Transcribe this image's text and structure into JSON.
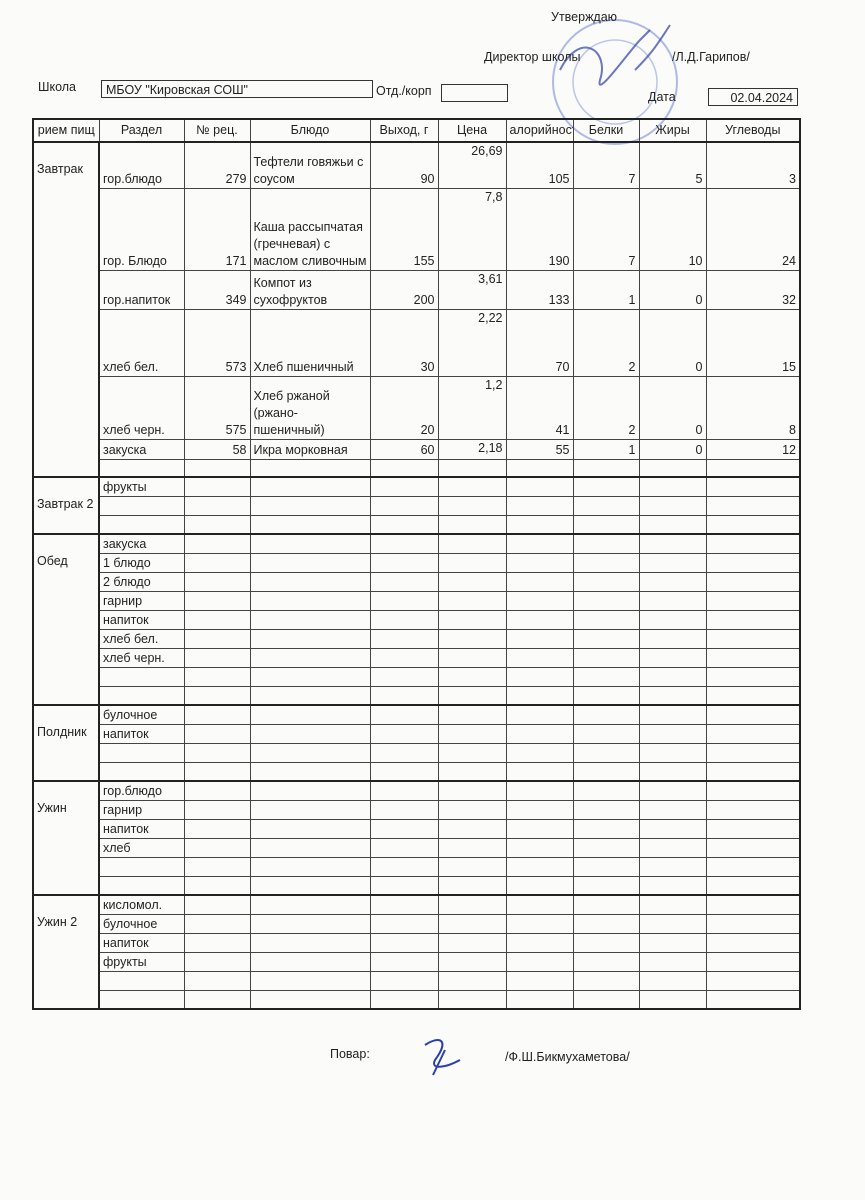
{
  "header": {
    "approve": "Утверждаю",
    "director_label": "Директор школы",
    "director_name": "/Л.Д.Гарипов/",
    "school_label": "Школа",
    "school": "МБОУ \"Кировская СОШ\"",
    "dept_label": "Отд./корп",
    "date_label": "Дата",
    "date": "02.04.2024"
  },
  "table": {
    "columns": [
      "рием пищ",
      "Раздел",
      "№ рец.",
      "Блюдо",
      "Выход, г",
      "Цена",
      "алорийност",
      "Белки",
      "Жиры",
      "Углеводы"
    ],
    "meals": [
      {
        "name": "Завтрак",
        "rows": [
          {
            "section": "гор.блюдо",
            "recipe": 279,
            "dish": "Тефтели говяжьи с соусом",
            "yield": 90,
            "price": "26,69",
            "kcal": 105,
            "protein": 7,
            "fat": 5,
            "carbs": 3
          },
          {
            "section": "гор. Блюдо",
            "recipe": 171,
            "dish": "Каша рассыпчатая (гречневая) с маслом сливочным",
            "yield": 155,
            "price": "7,8",
            "kcal": 190,
            "protein": 7,
            "fat": 10,
            "carbs": 24
          },
          {
            "section": "гор.напиток",
            "recipe": 349,
            "dish": "Компот из сухофруктов",
            "yield": 200,
            "price": "3,61",
            "kcal": 133,
            "protein": 1,
            "fat": 0,
            "carbs": 32
          },
          {
            "section": "хлеб бел.",
            "recipe": 573,
            "dish": "Хлеб пшеничный",
            "yield": 30,
            "price": "2,22",
            "kcal": 70,
            "protein": 2,
            "fat": 0,
            "carbs": 15
          },
          {
            "section": "хлеб черн.",
            "recipe": 575,
            "dish": "Хлеб ржаной (ржано-пшеничный)",
            "yield": 20,
            "price": "1,2",
            "kcal": 41,
            "protein": 2,
            "fat": 0,
            "carbs": 8
          },
          {
            "section": "закуска",
            "recipe": 58,
            "dish": "Икра морковная",
            "yield": 60,
            "price": "2,18",
            "kcal": 55,
            "protein": 1,
            "fat": 0,
            "carbs": 12
          },
          {}
        ]
      },
      {
        "name": "Завтрак 2",
        "rows": [
          {
            "section": "фрукты"
          },
          {},
          {}
        ]
      },
      {
        "name": "Обед",
        "rows": [
          {
            "section": "закуска"
          },
          {
            "section": "1 блюдо"
          },
          {
            "section": "2 блюдо"
          },
          {
            "section": "гарнир"
          },
          {
            "section": "напиток"
          },
          {
            "section": "хлеб бел."
          },
          {
            "section": "хлеб черн."
          },
          {},
          {}
        ]
      },
      {
        "name": "Полдник",
        "rows": [
          {
            "section": "булочное"
          },
          {
            "section": "напиток"
          },
          {},
          {}
        ]
      },
      {
        "name": "Ужин",
        "rows": [
          {
            "section": "гор.блюдо"
          },
          {
            "section": "гарнир"
          },
          {
            "section": "напиток"
          },
          {
            "section": "хлеб"
          },
          {},
          {}
        ]
      },
      {
        "name": "Ужин 2",
        "rows": [
          {
            "section": "кисломол."
          },
          {
            "section": "булочное"
          },
          {
            "section": "напиток"
          },
          {
            "section": "фрукты"
          },
          {},
          {}
        ]
      }
    ]
  },
  "footer": {
    "cook_label": "Повар:",
    "cook_name": "/Ф.Ш.Бикмухаметова/"
  }
}
